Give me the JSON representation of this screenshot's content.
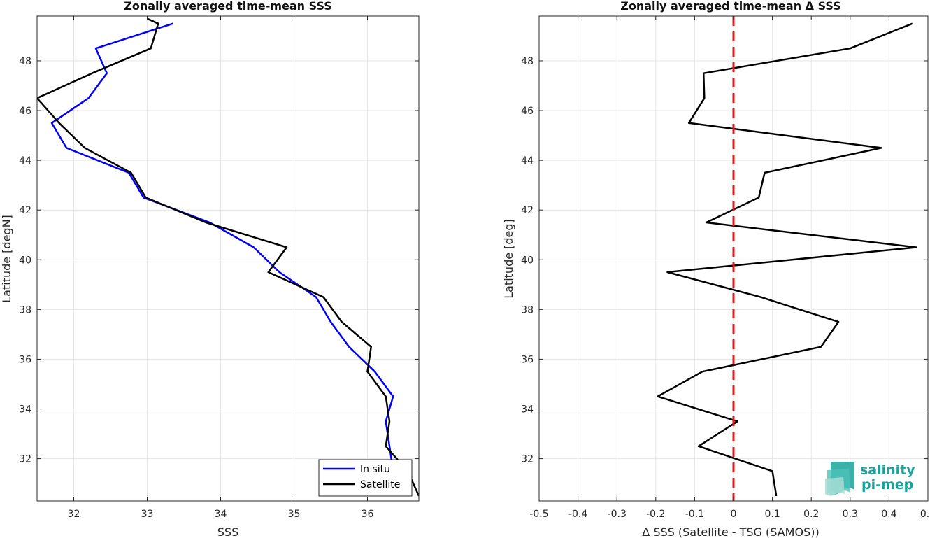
{
  "chart_data": [
    {
      "type": "line",
      "title": "Zonally averaged time-mean SSS",
      "xlabel": "SSS",
      "ylabel": "Latitude [degN]",
      "xlim": [
        31.5,
        36.7
      ],
      "ylim": [
        30.3,
        49.8
      ],
      "xticks": [
        32,
        33,
        34,
        35,
        36
      ],
      "yticks": [
        32,
        34,
        36,
        38,
        40,
        42,
        44,
        46,
        48
      ],
      "grid": true,
      "legend_position": "bottom-right",
      "series": [
        {
          "name": "In situ",
          "color": "#0000ff",
          "points": [
            [
              33.35,
              49.5
            ],
            [
              32.3,
              48.5
            ],
            [
              32.45,
              47.5
            ],
            [
              32.2,
              46.5
            ],
            [
              31.7,
              45.5
            ],
            [
              31.9,
              44.5
            ],
            [
              32.75,
              43.5
            ],
            [
              32.95,
              42.5
            ],
            [
              33.85,
              41.5
            ],
            [
              34.45,
              40.5
            ],
            [
              34.8,
              39.5
            ],
            [
              35.3,
              38.5
            ],
            [
              35.5,
              37.5
            ],
            [
              35.75,
              36.5
            ],
            [
              36.1,
              35.5
            ],
            [
              36.35,
              34.5
            ],
            [
              36.25,
              33.5
            ],
            [
              36.3,
              32.5
            ],
            [
              36.35,
              31.5
            ],
            [
              36.55,
              30.5
            ]
          ]
        },
        {
          "name": "Satellite",
          "color": "#000000",
          "points": [
            [
              33.0,
              49.7
            ],
            [
              33.15,
              49.5
            ],
            [
              33.05,
              48.5
            ],
            [
              32.25,
              47.5
            ],
            [
              31.5,
              46.5
            ],
            [
              31.8,
              45.5
            ],
            [
              32.15,
              44.5
            ],
            [
              32.78,
              43.5
            ],
            [
              32.98,
              42.5
            ],
            [
              33.8,
              41.5
            ],
            [
              34.9,
              40.5
            ],
            [
              34.65,
              39.5
            ],
            [
              35.4,
              38.5
            ],
            [
              35.65,
              37.5
            ],
            [
              36.05,
              36.5
            ],
            [
              36.0,
              35.5
            ],
            [
              36.25,
              34.5
            ],
            [
              36.3,
              33.5
            ],
            [
              36.25,
              32.5
            ],
            [
              36.55,
              31.5
            ],
            [
              36.7,
              30.5
            ]
          ]
        }
      ]
    },
    {
      "type": "line",
      "title": "Zonally averaged time-mean Δ SSS",
      "xlabel": "Δ SSS (Satellite - TSG (SAMOS))",
      "ylabel": "Latitude [deg]",
      "xlim": [
        -0.5,
        0.5
      ],
      "ylim": [
        30.3,
        49.8
      ],
      "xticks": [
        -0.5,
        -0.4,
        -0.3,
        -0.2,
        -0.1,
        0,
        0.1,
        0.2,
        0.3,
        0.4,
        0.5
      ],
      "yticks": [
        32,
        34,
        36,
        38,
        40,
        42,
        44,
        46,
        48
      ],
      "grid": true,
      "reference_line": {
        "x": 0,
        "color": "#e31a1c",
        "style": "dashed"
      },
      "series": [
        {
          "color": "#000000",
          "points": [
            [
              0.11,
              30.5
            ],
            [
              0.1,
              31.5
            ],
            [
              -0.09,
              32.5
            ],
            [
              0.01,
              33.5
            ],
            [
              -0.195,
              34.5
            ],
            [
              -0.08,
              35.5
            ],
            [
              0.225,
              36.5
            ],
            [
              0.27,
              37.5
            ],
            [
              0.07,
              38.5
            ],
            [
              -0.17,
              39.5
            ],
            [
              0.47,
              40.5
            ],
            [
              -0.07,
              41.5
            ],
            [
              0.065,
              42.5
            ],
            [
              0.08,
              43.5
            ],
            [
              0.38,
              44.5
            ],
            [
              -0.115,
              45.5
            ],
            [
              -0.075,
              46.5
            ],
            [
              -0.077,
              47.5
            ],
            [
              0.3,
              48.5
            ],
            [
              0.46,
              49.5
            ]
          ]
        }
      ]
    }
  ],
  "logo": {
    "line1": "salinity",
    "line2": "pi-mep",
    "color": "#1aa39a"
  }
}
